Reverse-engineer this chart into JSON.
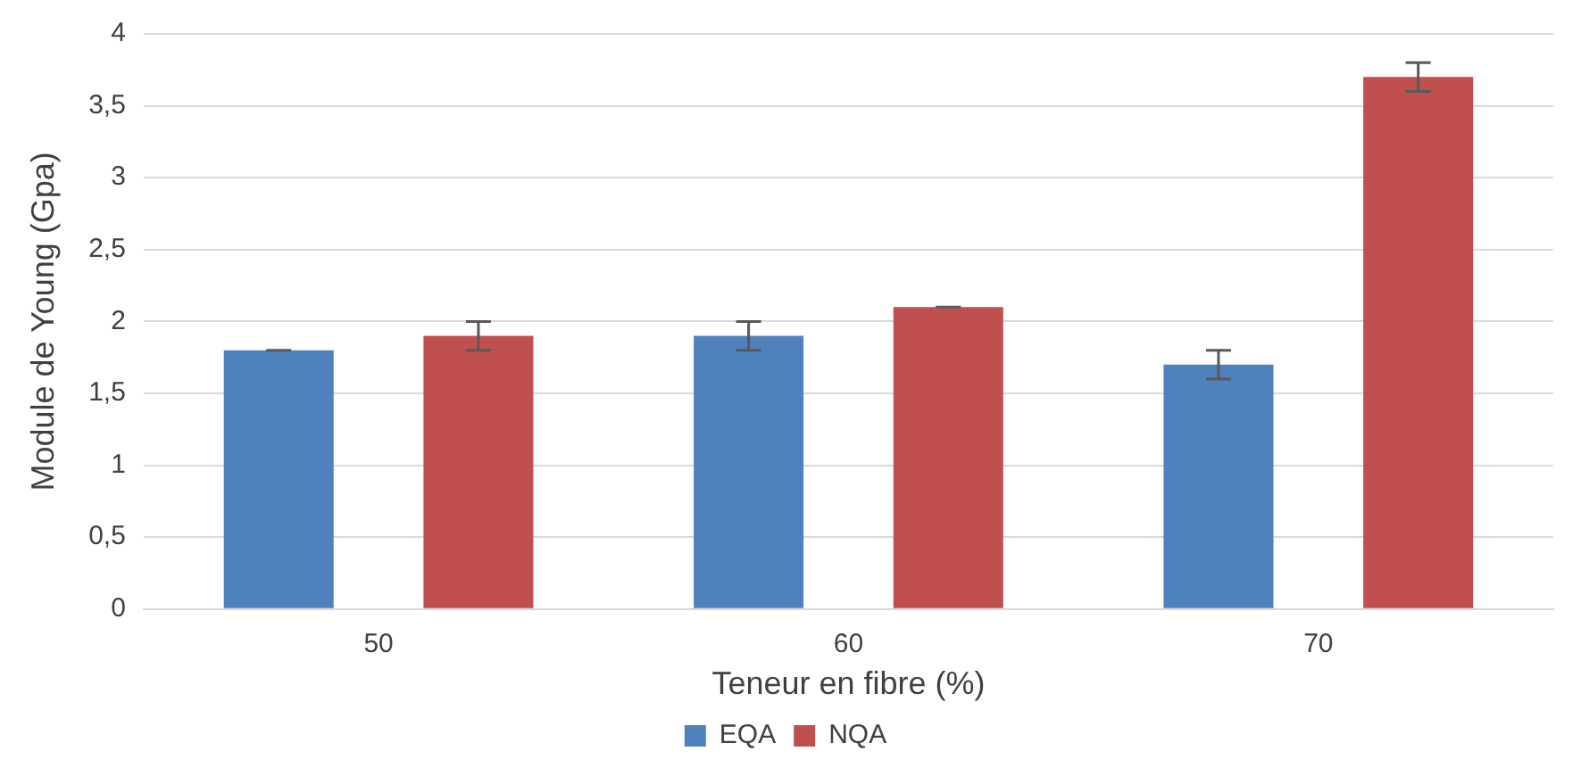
{
  "chart_data": {
    "type": "bar",
    "xlabel": "Teneur en fibre (%)",
    "ylabel": "Module de Young (Gpa)",
    "categories": [
      "50",
      "60",
      "70"
    ],
    "series": [
      {
        "name": "EQA",
        "color": "#4f81bd",
        "values": [
          1.8,
          1.9,
          1.7
        ],
        "errors": [
          0,
          0.1,
          0.1
        ]
      },
      {
        "name": "NQA",
        "color": "#c0504d",
        "values": [
          1.9,
          2.1,
          3.7
        ],
        "errors": [
          0.1,
          0,
          0.1
        ]
      }
    ],
    "ylim": [
      0,
      4
    ],
    "yticks": [
      0,
      {
        "value": 0.5,
        "label": "0,5"
      },
      1,
      {
        "value": 1.5,
        "label": "1,5"
      },
      2,
      {
        "value": 2.5,
        "label": "2,5"
      },
      3,
      {
        "value": 3.5,
        "label": "3,5"
      },
      4
    ],
    "grid": "y",
    "legend": "bottom"
  }
}
